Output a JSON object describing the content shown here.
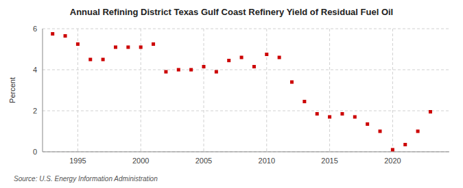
{
  "chart_data": {
    "type": "scatter",
    "title": "Annual Refining District Texas Gulf Coast Refinery Yield of Residual Fuel Oil",
    "y_label": "Percent",
    "annotations": [
      "Source: U.S. Energy Information Administration"
    ],
    "x": [
      1993,
      1994,
      1995,
      1996,
      1997,
      1998,
      1999,
      2000,
      2001,
      2002,
      2003,
      2004,
      2005,
      2006,
      2007,
      2008,
      2009,
      2010,
      2011,
      2012,
      2013,
      2014,
      2015,
      2016,
      2017,
      2018,
      2019,
      2020,
      2021,
      2022,
      2023
    ],
    "values": [
      5.75,
      5.65,
      5.25,
      4.5,
      4.5,
      5.1,
      5.1,
      5.1,
      5.25,
      3.9,
      4.0,
      4.0,
      4.15,
      3.9,
      4.45,
      4.6,
      4.15,
      4.75,
      4.6,
      3.4,
      2.45,
      1.85,
      1.7,
      1.85,
      1.7,
      1.35,
      1.0,
      0.1,
      0.35,
      1.0,
      1.95
    ],
    "color": "#cc0000",
    "marker": "square",
    "xlim": [
      1992.2,
      2024.5
    ],
    "xticks": [
      1995,
      2000,
      2005,
      2010,
      2015,
      2020
    ],
    "ylim": [
      0,
      6
    ],
    "yticks": [
      0,
      2,
      4,
      6
    ],
    "grid": true
  }
}
